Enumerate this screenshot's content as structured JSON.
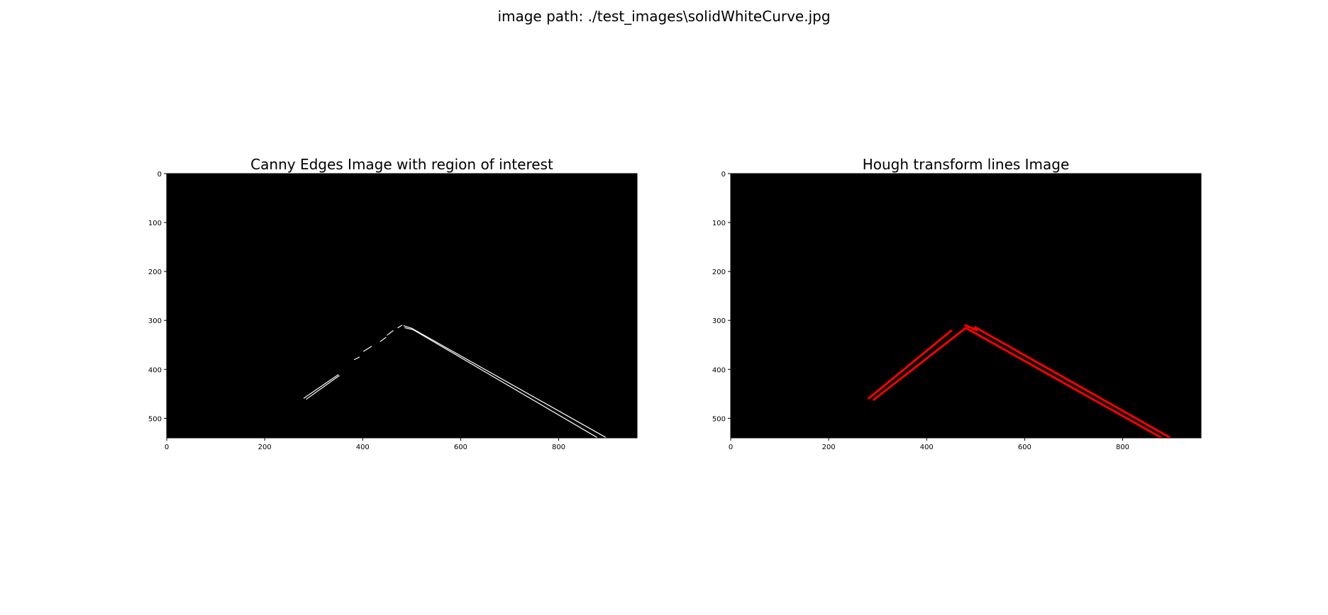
{
  "figure": {
    "title": "image path: ./test_images\\solidWhiteCurve.jpg"
  },
  "chart_data": [
    {
      "type": "image",
      "title": "Canny Edges Image with region of interest",
      "background": "#000000",
      "mark_color": "#ffffff",
      "xlim": [
        0,
        960
      ],
      "ylim": [
        540,
        0
      ],
      "xticks": [
        0,
        200,
        400,
        600,
        800
      ],
      "yticks": [
        0,
        100,
        200,
        300,
        400,
        500
      ],
      "segments": [
        [
          280,
          459,
          350,
          411
        ],
        [
          285,
          461,
          352,
          413
        ],
        [
          383,
          380,
          393,
          375
        ],
        [
          402,
          363,
          418,
          353
        ],
        [
          436,
          343,
          447,
          335
        ],
        [
          450,
          330,
          462,
          321
        ],
        [
          472,
          315,
          480,
          310
        ],
        [
          484,
          311,
          500,
          316
        ],
        [
          486,
          315,
          503,
          319
        ],
        [
          500,
          316,
          896,
          539
        ],
        [
          503,
          319,
          878,
          539
        ]
      ]
    },
    {
      "type": "image",
      "title": "Hough transform lines Image",
      "background": "#000000",
      "mark_color": "#ff0000",
      "xlim": [
        0,
        960
      ],
      "ylim": [
        540,
        0
      ],
      "xticks": [
        0,
        200,
        400,
        600,
        800
      ],
      "yticks": [
        0,
        100,
        200,
        300,
        400,
        500
      ],
      "segments": [
        [
          282,
          459,
          450,
          321
        ],
        [
          292,
          462,
          479,
          316
        ],
        [
          479,
          310,
          502,
          320
        ],
        [
          499,
          314,
          896,
          539
        ],
        [
          481,
          316,
          878,
          539
        ]
      ]
    }
  ]
}
